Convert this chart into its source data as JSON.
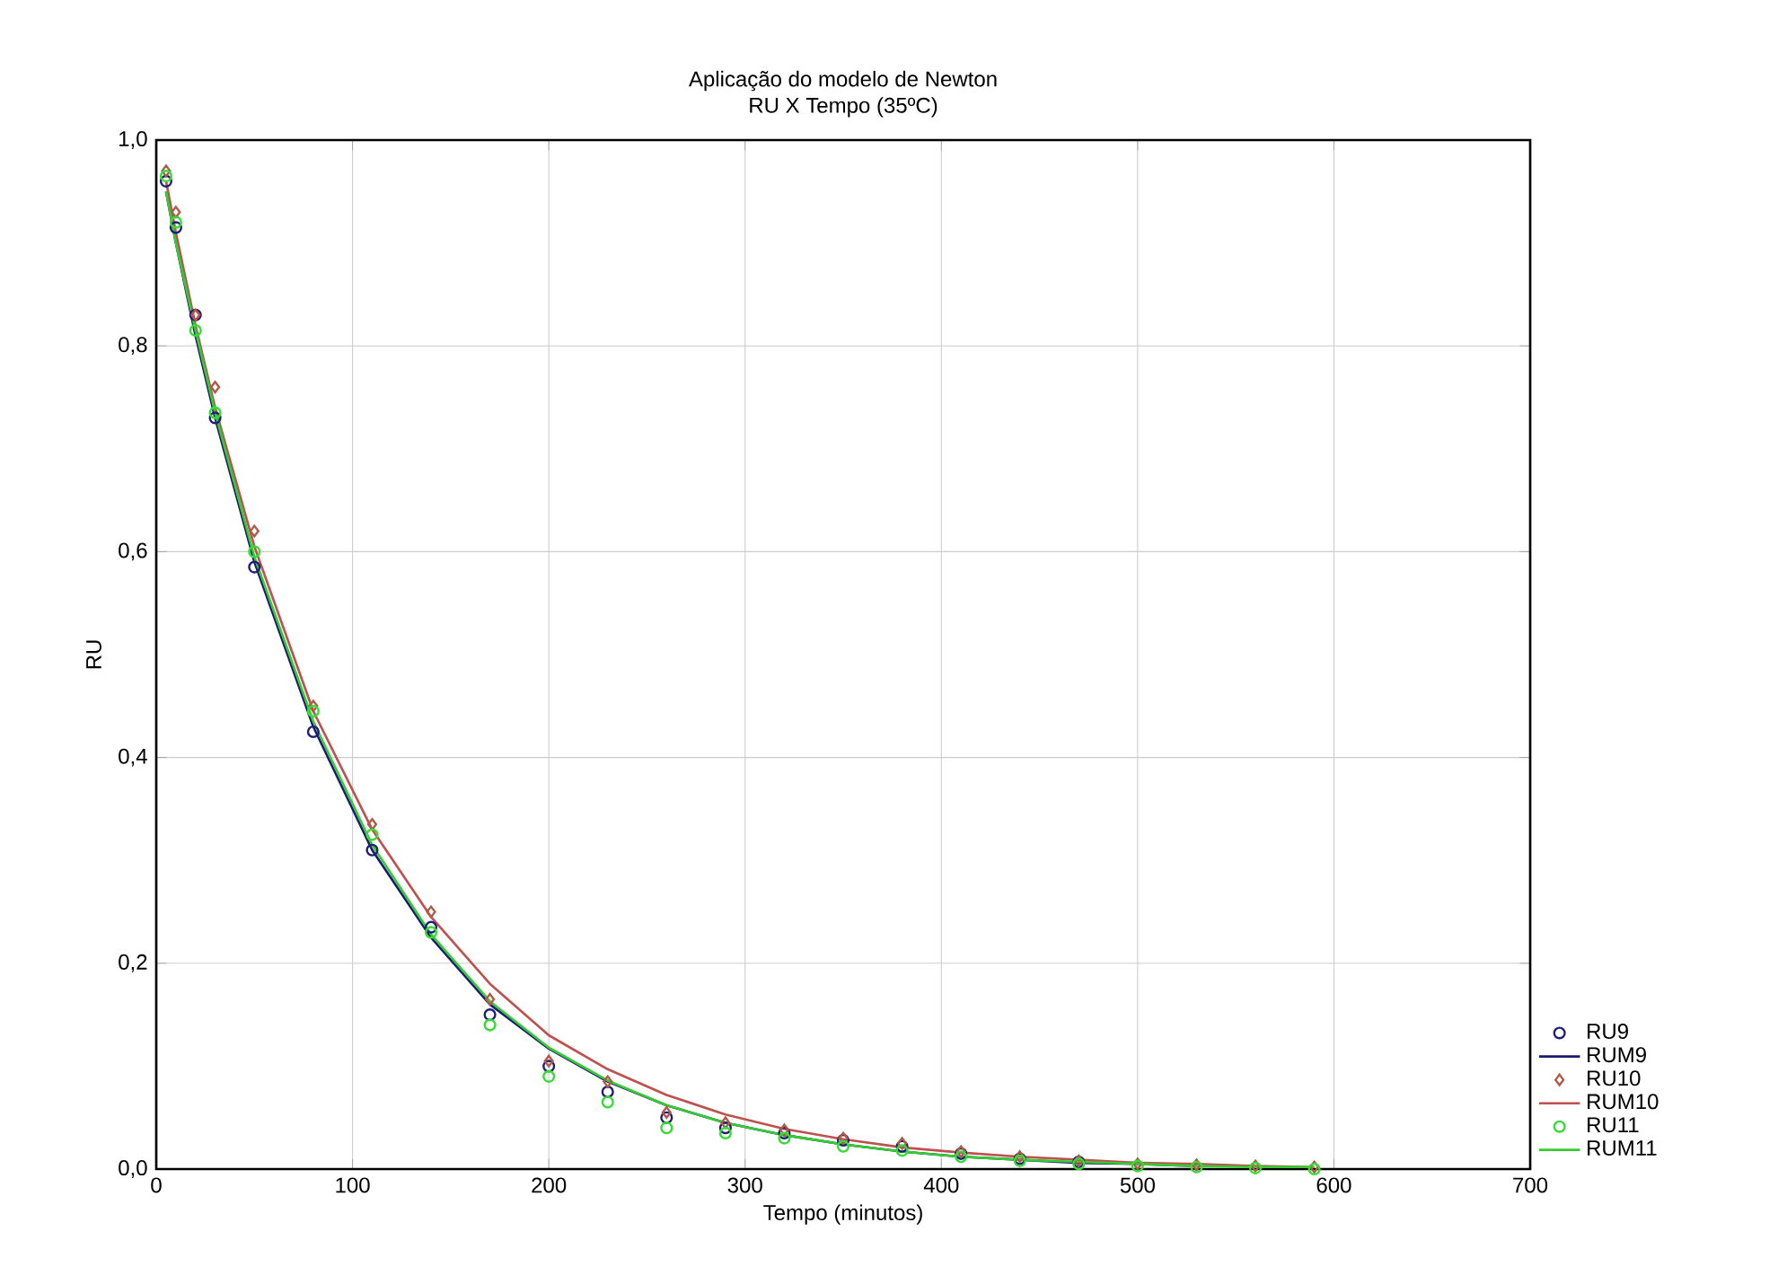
{
  "chart_data": {
    "type": "scatter",
    "title": "Aplicação do modelo de Newton",
    "subtitle": "RU X Tempo (35ºC)",
    "xlabel": "Tempo (minutos)",
    "ylabel": "RU",
    "x": [
      5,
      10,
      20,
      30,
      50,
      80,
      110,
      140,
      170,
      200,
      230,
      260,
      290,
      320,
      350,
      380,
      410,
      440,
      470,
      500,
      530,
      560,
      590
    ],
    "series": [
      {
        "name": "RU9",
        "type": "scatter",
        "marker": "circle",
        "color": "#1f1f7a",
        "values": [
          0.96,
          0.915,
          0.83,
          0.73,
          0.585,
          0.425,
          0.31,
          0.235,
          0.15,
          0.1,
          0.075,
          0.05,
          0.04,
          0.035,
          0.028,
          0.022,
          0.015,
          0.01,
          0.007,
          null,
          null,
          null,
          null
        ]
      },
      {
        "name": "RUM9",
        "type": "line",
        "marker": "none",
        "line_style": "solid",
        "color": "#1a1a6e",
        "values": [
          0.95,
          0.9,
          0.81,
          0.73,
          0.59,
          0.43,
          0.31,
          0.225,
          0.16,
          0.117,
          0.085,
          0.062,
          0.045,
          0.033,
          0.024,
          0.017,
          0.012,
          0.009,
          0.006,
          0.005,
          0.003,
          null,
          null
        ]
      },
      {
        "name": "RU10",
        "type": "scatter",
        "marker": "diamond",
        "color": "#b05a4a",
        "values": [
          0.97,
          0.93,
          0.83,
          0.76,
          0.62,
          0.45,
          0.335,
          0.25,
          0.165,
          0.105,
          0.085,
          0.055,
          0.045,
          0.038,
          0.03,
          0.025,
          0.017,
          0.012,
          0.008,
          0.005,
          0.004,
          0.003,
          0.002
        ]
      },
      {
        "name": "RUM10",
        "type": "line",
        "marker": "none",
        "line_style": "solid",
        "color": "#c0504d",
        "values": [
          0.96,
          0.91,
          0.82,
          0.74,
          0.605,
          0.445,
          0.33,
          0.245,
          0.18,
          0.13,
          0.097,
          0.072,
          0.053,
          0.039,
          0.029,
          0.021,
          0.016,
          0.012,
          0.009,
          0.006,
          0.005,
          0.003,
          0.002
        ]
      },
      {
        "name": "RU11",
        "type": "scatter",
        "marker": "circle",
        "color": "#33dd33",
        "values": [
          0.965,
          0.92,
          0.815,
          0.735,
          0.6,
          0.445,
          0.325,
          0.23,
          0.14,
          0.09,
          0.065,
          0.04,
          0.035,
          0.03,
          0.022,
          0.018,
          0.012,
          0.008,
          0.005,
          0.003,
          0.002,
          0.001,
          0.0
        ]
      },
      {
        "name": "RUM11",
        "type": "line",
        "marker": "none",
        "line_style": "solid",
        "color": "#33cc33",
        "values": [
          0.95,
          0.9,
          0.815,
          0.735,
          0.595,
          0.435,
          0.315,
          0.228,
          0.163,
          0.118,
          0.086,
          0.062,
          0.045,
          0.033,
          0.024,
          0.017,
          0.012,
          0.009,
          0.007,
          0.005,
          0.003,
          0.002,
          0.002
        ]
      }
    ],
    "xlim": [
      0,
      700
    ],
    "xticks": [
      0,
      100,
      200,
      300,
      400,
      500,
      600,
      700
    ],
    "ylim": [
      0,
      1
    ],
    "yticks": [
      {
        "value": 0,
        "label": "0,0"
      },
      {
        "value": 0.2,
        "label": "0,2"
      },
      {
        "value": 0.4,
        "label": "0,4"
      },
      {
        "value": 0.6,
        "label": "0,6"
      },
      {
        "value": 0.8,
        "label": "0,8"
      },
      {
        "value": 1,
        "label": "1,0"
      }
    ],
    "grid": true,
    "legend": "bottom right"
  }
}
